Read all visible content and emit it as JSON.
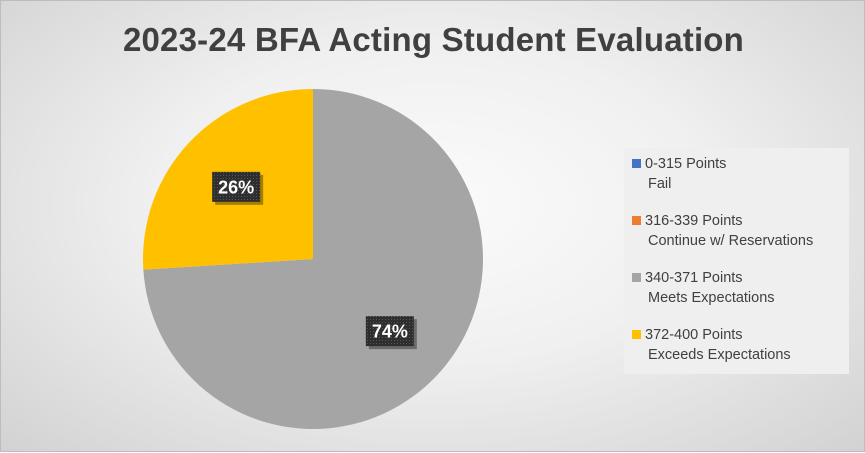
{
  "chart_data": {
    "type": "pie",
    "title": "2023-24 BFA Acting Student Evaluation",
    "legend_position": "right",
    "slices": [
      {
        "label": "0-315 Points",
        "sublabel": "Fail",
        "value": 0,
        "display": "",
        "color": "#4472C4"
      },
      {
        "label": "316-339 Points",
        "sublabel": "Continue w/ Reservations",
        "value": 0,
        "display": "",
        "color": "#ED7D31"
      },
      {
        "label": "340-371 Points",
        "sublabel": "Meets Expectations",
        "value": 74,
        "display": "74%",
        "color": "#A5A5A5"
      },
      {
        "label": "372-400 Points",
        "sublabel": "Exceeds Expectations",
        "value": 26,
        "display": "26%",
        "color": "#FFC000"
      }
    ]
  }
}
